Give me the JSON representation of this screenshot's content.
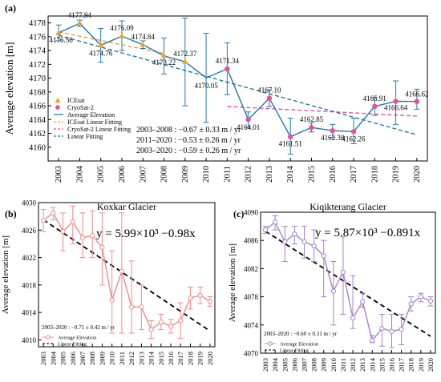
{
  "chart_data": [
    {
      "type": "line",
      "panel": "(a)",
      "ylabel": "Average elevation [m]",
      "ylim": [
        4158,
        4179
      ],
      "yticks": [
        4160,
        4162,
        4164,
        4166,
        4168,
        4170,
        4172,
        4174,
        4176,
        4178
      ],
      "x": [
        "2003",
        "2004",
        "2005",
        "2006",
        "2007",
        "2008",
        "2009",
        "2010",
        "2011",
        "2012",
        "2013",
        "2014",
        "2015",
        "2016",
        "2017",
        "2018",
        "2019",
        "2020"
      ],
      "series": [
        {
          "name": "Average Elevation",
          "color": "#1f77b4",
          "values": [
            4176.56,
            4177.94,
            4174.76,
            4176.09,
            4174.84,
            4173.22,
            4172.37,
            4170.05,
            4171.34,
            4164.01,
            4167.1,
            4161.51,
            4162.85,
            4162.38,
            4162.26,
            4165.91,
            4166.64,
            4166.62
          ],
          "err_low": [
            4175.4,
            4177.5,
            4172.3,
            4174.0,
            4174.3,
            4170.6,
            4166.0,
            4163.6,
            4167.6,
            4162.9,
            4165.9,
            4159.0,
            4162.2,
            4161.4,
            4160.5,
            4164.6,
            4163.3,
            4165.5
          ],
          "err_high": [
            4177.7,
            4178.4,
            4177.2,
            4178.3,
            4175.4,
            4175.8,
            4178.7,
            4176.5,
            4175.1,
            4165.1,
            4168.3,
            4164.2,
            4163.5,
            4163.3,
            4164.2,
            4167.2,
            4169.6,
            4168.4
          ],
          "labels": [
            "4176.56",
            "4177.94",
            "4174.76",
            "4176.09",
            "4174.84",
            "4173.22",
            "4172.37",
            "4170.05",
            "4171.34",
            "4164.01",
            "4167.10",
            "4161.51",
            "4162.85",
            "4162.38",
            "4162.26",
            "4165.91",
            "4166.64",
            "4166.62"
          ]
        },
        {
          "name": "ICEsat",
          "color": "#f0a020",
          "marker": "triangle",
          "x_range": [
            "2003",
            "2009"
          ]
        },
        {
          "name": "CryoSat-2",
          "color": "#e94f9a",
          "marker": "circle",
          "x_range": [
            "2011",
            "2020"
          ]
        }
      ],
      "fits": [
        {
          "name": "ICEsat Linear Fitting",
          "color": "#f0a020",
          "from": [
            "2003",
            4176.7
          ],
          "to": [
            "2008",
            4173.6
          ]
        },
        {
          "name": "CryoSat-2 Linear Fitting",
          "color": "#e94f9a",
          "from": [
            "2011",
            4165.9
          ],
          "to": [
            "2020",
            4164.5
          ]
        },
        {
          "name": "Linear Fitting",
          "color": "#1f77b4",
          "from": [
            "2003",
            4176.2
          ],
          "to": [
            "2020",
            4161.8
          ]
        }
      ],
      "annotations": [
        "2003–2008 : −0.67 ± 0.33 m / yr",
        "2011–2020 : −0.53 ± 0.26 m / yr",
        "2003–2020 : −0.59 ± 0.26 m / yr"
      ],
      "legend": "bottom-left"
    },
    {
      "type": "line",
      "panel": "(b)",
      "title": "Koxkar Glacier",
      "ylabel": "Average elevation [m]",
      "ylim": [
        4009,
        4030
      ],
      "yticks": [
        4010,
        4014,
        4018,
        4022,
        4026,
        4030
      ],
      "x": [
        "2003",
        "2004",
        "2005",
        "2006",
        "2007",
        "2008",
        "2009",
        "2010",
        "2011",
        "2012",
        "2013",
        "2014",
        "2015",
        "2016",
        "2017",
        "2018",
        "2019",
        "2020"
      ],
      "equation": "y = 5.99×10³ −0.98x",
      "annotation": "2003–2020 : −0.71 ± 0.42 m / yr",
      "series": [
        {
          "name": "Average Elevation",
          "color": "#f08a8a",
          "values": [
            4027.4,
            4028.5,
            4025.8,
            4027.2,
            4024.9,
            4025.2,
            4023.5,
            4015.8,
            4020.0,
            4014.8,
            4014.8,
            4011.5,
            4012.6,
            4012.0,
            4012.8,
            4016.1,
            4016.5,
            4015.6
          ],
          "err_low": [
            4025.8,
            4027.5,
            4023.0,
            4024.0,
            4022.0,
            4022.0,
            4018.0,
            4011.0,
            4011.0,
            4011.0,
            4011.5,
            4010.2,
            4011.5,
            4011.0,
            4010.2,
            4014.5,
            4015.3,
            4014.9
          ],
          "err_high": [
            4029.0,
            4029.3,
            4028.5,
            4029.5,
            4028.5,
            4028.8,
            4028.5,
            4023.0,
            4028.5,
            4021.5,
            4018.0,
            4012.8,
            4013.7,
            4013.0,
            4015.4,
            4017.7,
            4017.7,
            4016.3
          ]
        }
      ],
      "fit": {
        "name": "Linear Fitting",
        "color": "#000000",
        "from": [
          "2003",
          4027.5
        ],
        "to": [
          "2020",
          4011.3
        ]
      },
      "legend": "bottom-left"
    },
    {
      "type": "line",
      "panel": "(c)",
      "title": "Kiqikterang Glacier",
      "ylabel": "Average elevation [m]",
      "ylim": [
        4070,
        4090
      ],
      "yticks": [
        4070,
        4074,
        4078,
        4082,
        4086,
        4090
      ],
      "x": [
        "2003",
        "2004",
        "2005",
        "2006",
        "2007",
        "2008",
        "2009",
        "2010",
        "2011",
        "2012",
        "2013",
        "2014",
        "2015",
        "2016",
        "2017",
        "2018",
        "2019",
        "2020"
      ],
      "equation": "y = 5.87×10³ −0.891x",
      "annotation": "2003–2020 : −0.60 ± 0.31 m / yr",
      "series": [
        {
          "name": "Average Elevation",
          "color": "#a97fc9",
          "values": [
            4087.5,
            4088.6,
            4085.8,
            4086.9,
            4085.8,
            4085.2,
            4083.8,
            4078.8,
            4081.5,
            4075.0,
            4077.3,
            4071.8,
            4073.5,
            4073.1,
            4073.4,
            4077.0,
            4078.0,
            4077.4
          ],
          "err_low": [
            4087.0,
            4087.5,
            4083.0,
            4085.5,
            4083.5,
            4083.0,
            4078.0,
            4074.0,
            4075.5,
            4073.5,
            4076.5,
            4071.5,
            4071.0,
            4070.8,
            4071.2,
            4076.0,
            4077.3,
            4076.7
          ],
          "err_high": [
            4088.0,
            4089.5,
            4088.0,
            4088.0,
            4088.0,
            4087.5,
            4086.0,
            4083.0,
            4086.5,
            4081.0,
            4078.5,
            4072.5,
            4075.5,
            4075.5,
            4075.5,
            4078.0,
            4078.5,
            4078.0
          ]
        }
      ],
      "fit": {
        "name": "Linear Fitting",
        "color": "#000000",
        "from": [
          "2003",
          4087.3
        ],
        "to": [
          "2020",
          4072.4
        ]
      },
      "legend": "bottom-left"
    }
  ]
}
